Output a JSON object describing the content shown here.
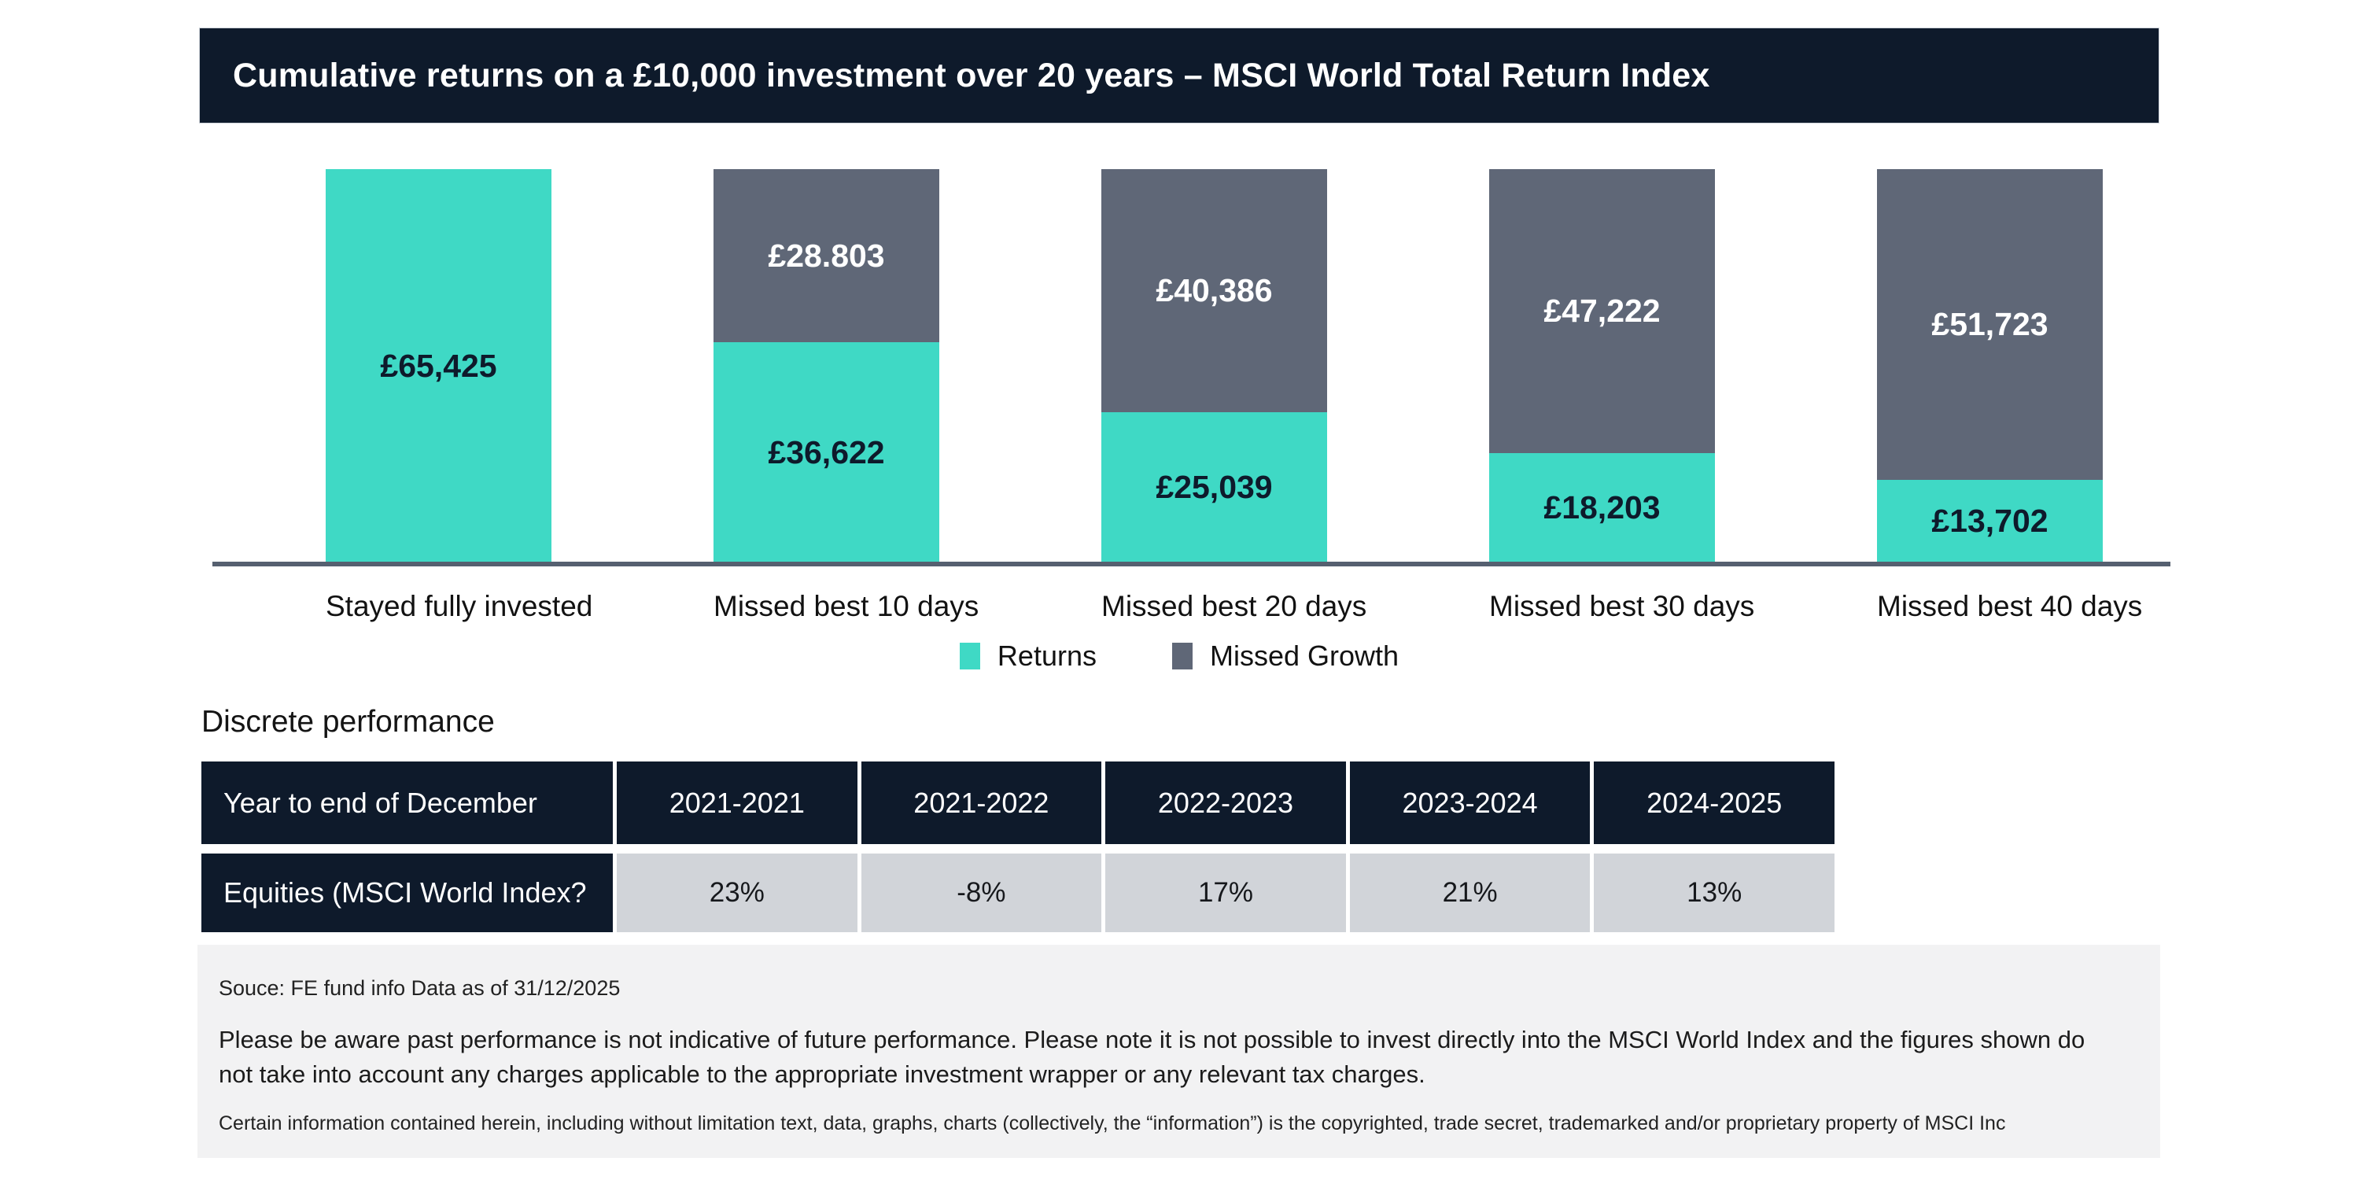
{
  "header": {
    "title": "Cumulative returns on a £10,000 investment over 20 years – MSCI World Total Return Index"
  },
  "colors": {
    "navy": "#0e1a2b",
    "teal": "#3fd9c5",
    "slate": "#5f6777",
    "axis_line": "#566070",
    "table_cell_gray": "#d1d4d9",
    "footer_bg": "#f2f2f3"
  },
  "chart_data": {
    "type": "bar",
    "subtype": "stacked-column",
    "categories": [
      "Stayed fully invested",
      "Missed best 10 days",
      "Missed best 20 days",
      "Missed best 30 days",
      "Missed best 40 days"
    ],
    "series": [
      {
        "name": "Returns",
        "color": "#3fd9c5",
        "text_color": "#0e1a2b",
        "values": [
          65425,
          36622,
          25039,
          18203,
          13702
        ],
        "labels": [
          "£65,425",
          "£36,622",
          "£25,039",
          "£18,203",
          "£13,702"
        ]
      },
      {
        "name": "Missed Growth",
        "color": "#5f6777",
        "text_color": "#ffffff",
        "values": [
          0,
          28803,
          40386,
          47222,
          51723
        ],
        "labels": [
          "",
          "£28.803",
          "£40,386",
          "£47,222",
          "£51,723"
        ]
      }
    ],
    "stack_total_each_bar": 65425,
    "ylim": [
      0,
      65425
    ],
    "grid": false,
    "legend_position": "bottom"
  },
  "legend": {
    "items": [
      {
        "label": "Returns",
        "color": "#3fd9c5"
      },
      {
        "label": "Missed Growth",
        "color": "#5f6777"
      }
    ]
  },
  "table": {
    "title": "Discrete performance",
    "header": [
      "Year to end of December",
      "2021-2021",
      "2021-2022",
      "2022-2023",
      "2023-2024",
      "2024-2025"
    ],
    "rows": [
      {
        "label": "Equities (MSCI World Index?",
        "values": [
          "23%",
          "-8%",
          "17%",
          "21%",
          "13%"
        ]
      }
    ]
  },
  "footer": {
    "source": "Souce: FE fund info Data as of 31/12/2025",
    "disclaimer": "Please be aware past performance is not indicative of future performance. Please note it is not possible to invest directly into the MSCI World Index and the figures shown do not take into account any charges applicable to the appropriate investment wrapper or any relevant tax charges.",
    "copyright": "Certain information contained herein, including without limitation text, data, graphs, charts (collectively, the “information”) is the copyrighted, trade secret, trademarked and/or proprietary property of MSCI Inc"
  }
}
